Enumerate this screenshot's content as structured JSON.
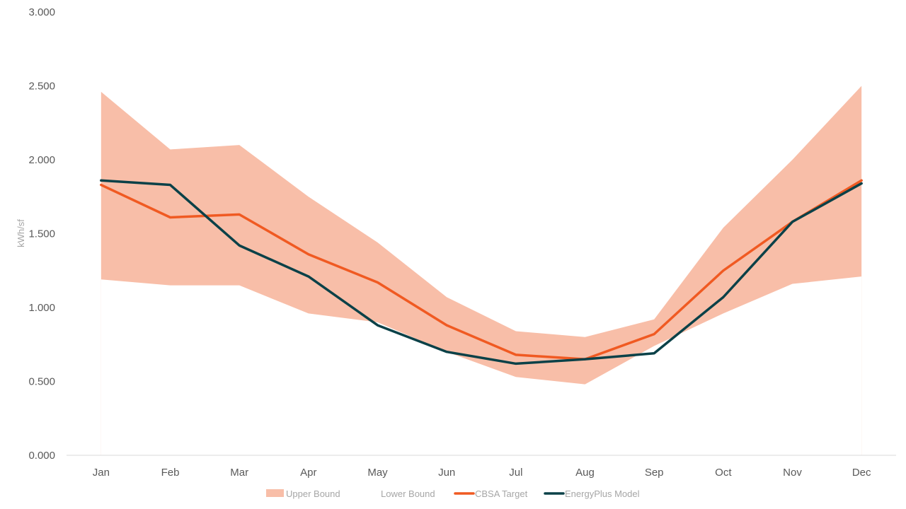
{
  "chart_data": {
    "type": "line",
    "title": "",
    "xlabel": "",
    "ylabel": "kWh/sf",
    "ylim": [
      0,
      3
    ],
    "y_ticks": [
      "0.000",
      "0.500",
      "1.000",
      "1.500",
      "2.000",
      "2.500",
      "3.000"
    ],
    "y_tick_values": [
      0,
      0.5,
      1,
      1.5,
      2,
      2.5,
      3
    ],
    "grid": false,
    "legend_position": "bottom",
    "categories": [
      "Jan",
      "Feb",
      "Mar",
      "Apr",
      "May",
      "Jun",
      "Jul",
      "Aug",
      "Sep",
      "Oct",
      "Nov",
      "Dec"
    ],
    "series": [
      {
        "name": "Upper Bound",
        "style": "area",
        "color": "#f8bea8",
        "values": [
          2.46,
          2.07,
          2.1,
          1.75,
          1.44,
          1.07,
          0.84,
          0.8,
          0.92,
          1.54,
          2.0,
          2.5
        ]
      },
      {
        "name": "Lower Bound",
        "style": "area",
        "color": "#ffffff",
        "values": [
          1.19,
          1.15,
          1.15,
          0.96,
          0.9,
          0.7,
          0.53,
          0.48,
          0.74,
          0.96,
          1.16,
          1.21
        ]
      },
      {
        "name": "CBSA Target",
        "style": "line",
        "color": "#f05a22",
        "values": [
          1.83,
          1.61,
          1.63,
          1.36,
          1.17,
          0.88,
          0.68,
          0.65,
          0.82,
          1.25,
          1.58,
          1.86
        ]
      },
      {
        "name": "EnergyPlus Model",
        "style": "line",
        "color": "#0b4148",
        "values": [
          1.86,
          1.83,
          1.42,
          1.21,
          0.88,
          0.7,
          0.62,
          0.65,
          0.69,
          1.07,
          1.58,
          1.84
        ]
      }
    ]
  }
}
